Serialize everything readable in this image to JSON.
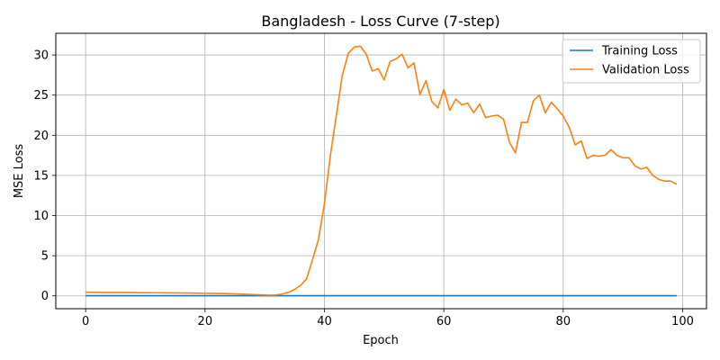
{
  "chart_data": {
    "type": "line",
    "title": "Bangladesh - Loss Curve (7-step)",
    "xlabel": "Epoch",
    "ylabel": "MSE Loss",
    "xlim": [
      -5,
      104
    ],
    "ylim": [
      -1.6,
      32.7
    ],
    "xticks": [
      0,
      20,
      40,
      60,
      80,
      100
    ],
    "yticks": [
      0,
      5,
      10,
      15,
      20,
      25,
      30
    ],
    "grid": true,
    "legend_position": "top-right",
    "series": [
      {
        "name": "Training Loss",
        "color": "#1f77b4",
        "x": [
          0,
          1,
          2,
          3,
          4,
          5,
          6,
          7,
          8,
          9,
          10,
          11,
          12,
          13,
          14,
          15,
          16,
          17,
          18,
          19,
          20,
          21,
          22,
          23,
          24,
          25,
          26,
          27,
          28,
          29,
          30,
          31,
          32,
          33,
          34,
          35,
          36,
          37,
          38,
          39,
          40,
          41,
          42,
          43,
          44,
          45,
          46,
          47,
          48,
          49,
          50,
          51,
          52,
          53,
          54,
          55,
          56,
          57,
          58,
          59,
          60,
          61,
          62,
          63,
          64,
          65,
          66,
          67,
          68,
          69,
          70,
          71,
          72,
          73,
          74,
          75,
          76,
          77,
          78,
          79,
          80,
          81,
          82,
          83,
          84,
          85,
          86,
          87,
          88,
          89,
          90,
          91,
          92,
          93,
          94,
          95,
          96,
          97,
          98,
          99
        ],
        "y": [
          0.02,
          0.02,
          0.02,
          0.02,
          0.02,
          0.02,
          0.02,
          0.02,
          0.02,
          0.02,
          0.02,
          0.02,
          0.02,
          0.02,
          0.02,
          0.02,
          0.02,
          0.02,
          0.02,
          0.02,
          0.02,
          0.02,
          0.02,
          0.02,
          0.02,
          0.02,
          0.02,
          0.02,
          0.02,
          0.02,
          0.02,
          0.02,
          0.02,
          0.02,
          0.02,
          0.02,
          0.02,
          0.02,
          0.02,
          0.02,
          0.02,
          0.02,
          0.02,
          0.02,
          0.02,
          0.02,
          0.02,
          0.02,
          0.02,
          0.02,
          0.02,
          0.02,
          0.02,
          0.02,
          0.02,
          0.02,
          0.02,
          0.02,
          0.02,
          0.02,
          0.02,
          0.02,
          0.02,
          0.02,
          0.02,
          0.02,
          0.02,
          0.02,
          0.02,
          0.02,
          0.02,
          0.02,
          0.02,
          0.02,
          0.02,
          0.02,
          0.02,
          0.02,
          0.02,
          0.02,
          0.02,
          0.02,
          0.02,
          0.02,
          0.02,
          0.02,
          0.02,
          0.02,
          0.02,
          0.02,
          0.02,
          0.02,
          0.02,
          0.02,
          0.02,
          0.02,
          0.02,
          0.02,
          0.02,
          0.02
        ]
      },
      {
        "name": "Validation Loss",
        "color": "#ff7f0e",
        "x": [
          0,
          1,
          2,
          3,
          4,
          5,
          6,
          7,
          8,
          9,
          10,
          11,
          12,
          13,
          14,
          15,
          16,
          17,
          18,
          19,
          20,
          21,
          22,
          23,
          24,
          25,
          26,
          27,
          28,
          29,
          30,
          31,
          32,
          33,
          34,
          35,
          36,
          37,
          38,
          39,
          40,
          41,
          42,
          43,
          44,
          45,
          46,
          47,
          48,
          49,
          50,
          51,
          52,
          53,
          54,
          55,
          56,
          57,
          58,
          59,
          60,
          61,
          62,
          63,
          64,
          65,
          66,
          67,
          68,
          69,
          70,
          71,
          72,
          73,
          74,
          75,
          76,
          77,
          78,
          79,
          80,
          81,
          82,
          83,
          84,
          85,
          86,
          87,
          88,
          89,
          90,
          91,
          92,
          93,
          94,
          95,
          96,
          97,
          98,
          99
        ],
        "y": [
          0.45,
          0.44,
          0.44,
          0.43,
          0.43,
          0.42,
          0.42,
          0.41,
          0.41,
          0.4,
          0.4,
          0.39,
          0.39,
          0.38,
          0.37,
          0.37,
          0.36,
          0.35,
          0.34,
          0.33,
          0.32,
          0.31,
          0.3,
          0.28,
          0.27,
          0.25,
          0.22,
          0.19,
          0.16,
          0.13,
          0.1,
          0.08,
          0.12,
          0.25,
          0.45,
          0.8,
          1.3,
          2.1,
          4.5,
          7.0,
          11.5,
          17.5,
          22.5,
          27.5,
          30.2,
          31.0,
          31.1,
          30.1,
          28.0,
          28.3,
          26.9,
          29.2,
          29.5,
          30.1,
          28.4,
          29.0,
          25.1,
          26.8,
          24.2,
          23.4,
          25.7,
          23.1,
          24.5,
          23.8,
          24.0,
          22.8,
          23.9,
          22.2,
          22.4,
          22.5,
          22.0,
          19.1,
          17.8,
          21.6,
          21.6,
          24.3,
          25.0,
          22.8,
          24.1,
          23.3,
          22.4,
          21.0,
          18.8,
          19.3,
          17.1,
          17.5,
          17.4,
          17.5,
          18.2,
          17.5,
          17.2,
          17.2,
          16.2,
          15.8,
          16.0,
          15.0,
          14.5,
          14.3,
          14.3,
          13.9
        ]
      }
    ]
  }
}
